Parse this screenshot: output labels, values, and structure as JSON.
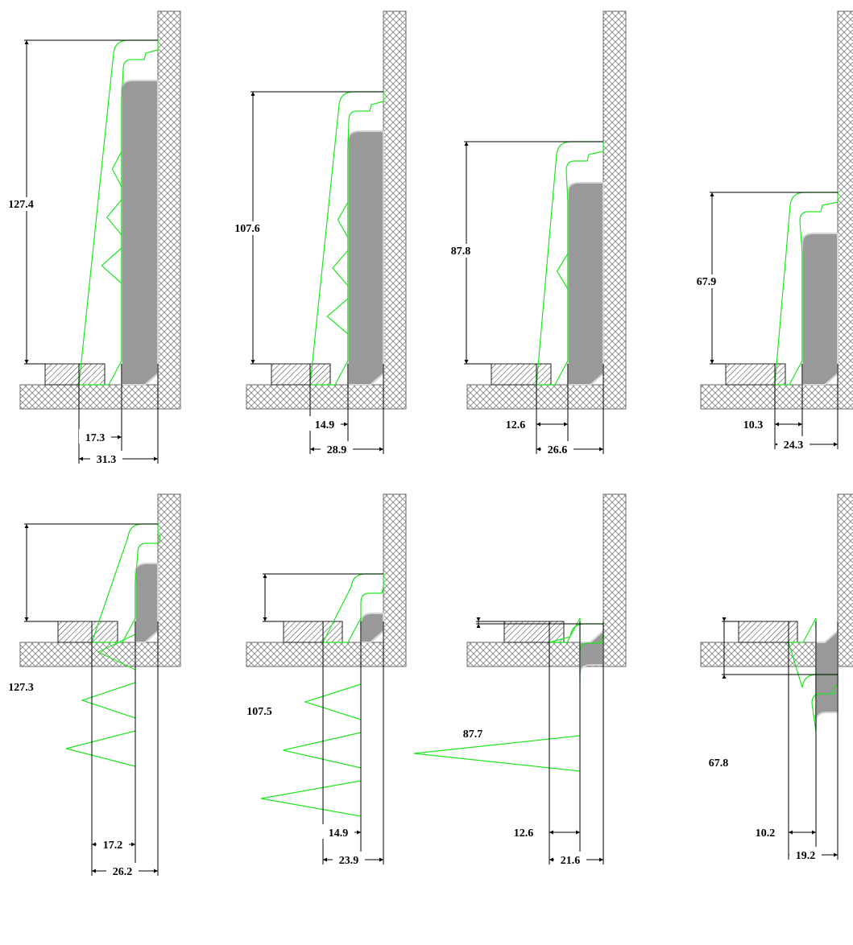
{
  "colors": {
    "background": "#ffffff",
    "profile_outline": "#1ee61e",
    "liner_fill": "#999999",
    "liner_edge": "#d4d4d4",
    "dimension_line": "#000000",
    "wall_hatch": "#808080",
    "pad_hatch": "#333333"
  },
  "rows": [
    {
      "name": "top-row",
      "sections": [
        {
          "height": "127.4",
          "inner_width": "17.3",
          "outer_width": "31.3"
        },
        {
          "height": "107.6",
          "inner_width": "14.9",
          "outer_width": "28.9"
        },
        {
          "height": "87.8",
          "inner_width": "12.6",
          "outer_width": "26.6"
        },
        {
          "height": "67.9",
          "inner_width": "10.3",
          "outer_width": "24.3"
        }
      ]
    },
    {
      "name": "bottom-row",
      "sections": [
        {
          "height": "127.3",
          "inner_width": "17.2",
          "outer_width": "26.2"
        },
        {
          "height": "107.5",
          "inner_width": "14.9",
          "outer_width": "23.9"
        },
        {
          "height": "87.7",
          "inner_width": "12.6",
          "outer_width": "21.6"
        },
        {
          "height": "67.8",
          "inner_width": "10.2",
          "outer_width": "19.2"
        }
      ]
    }
  ]
}
